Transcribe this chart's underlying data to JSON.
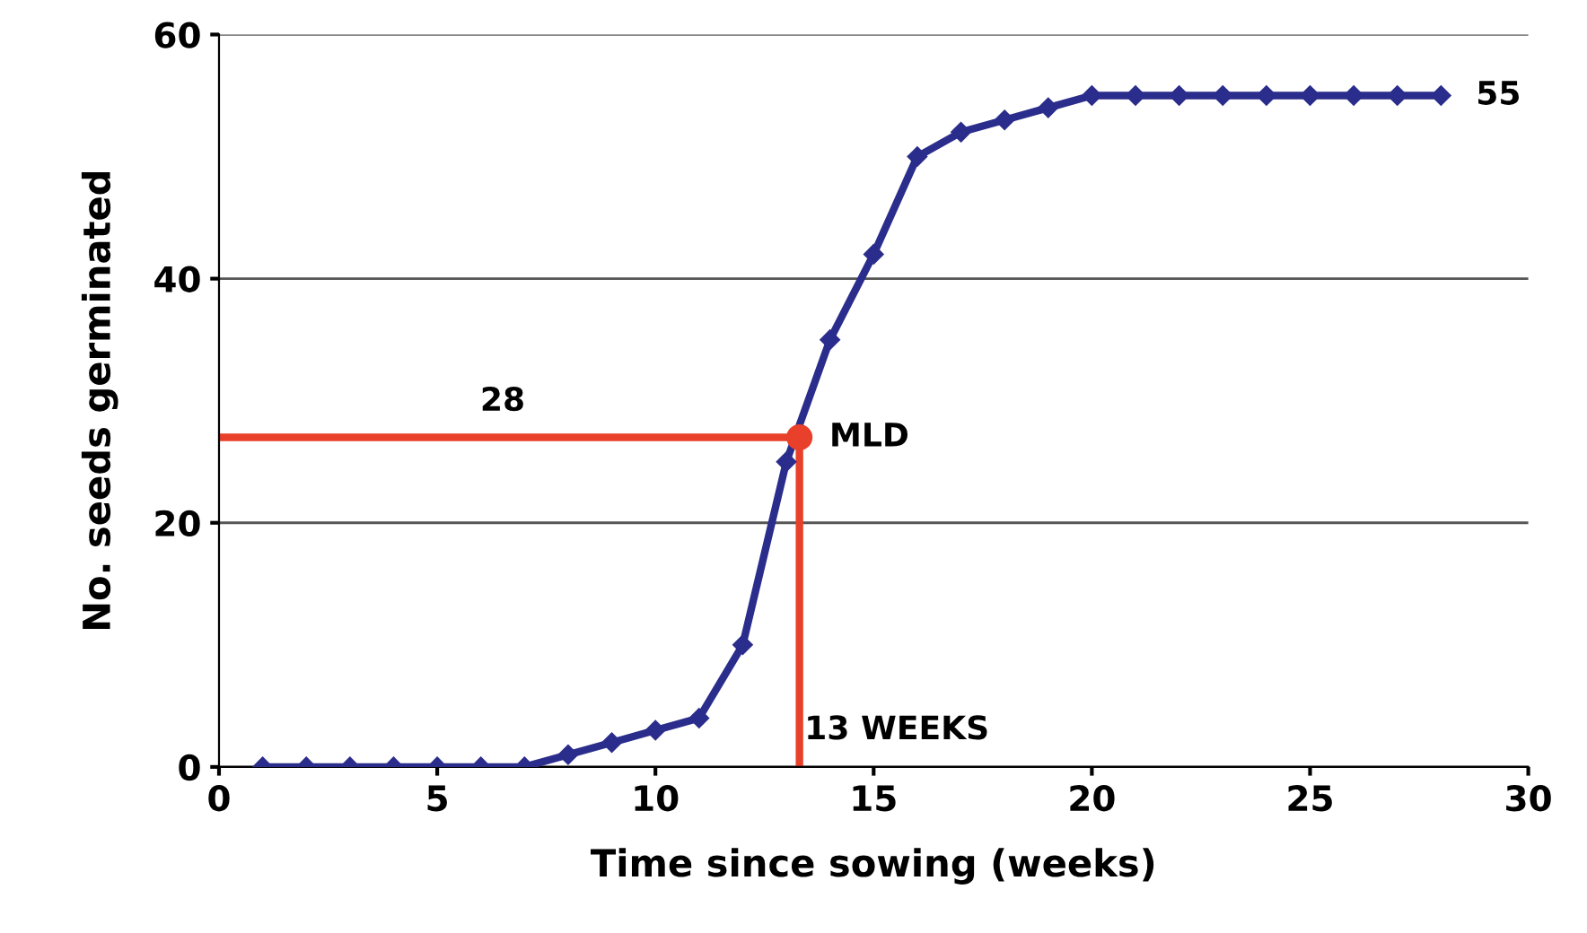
{
  "chart_data": {
    "type": "line",
    "xlabel": "Time since sowing (weeks)",
    "ylabel": "No. seeds germinated",
    "xlim": [
      0,
      30
    ],
    "xticks": [
      0,
      5,
      10,
      15,
      20,
      25,
      30
    ],
    "ylim": [
      0,
      60
    ],
    "yticks": [
      0,
      20,
      40,
      60
    ],
    "grid": "y",
    "series": [
      {
        "color": "#2b2d8c",
        "marker": "diamond",
        "x": [
          1,
          2,
          3,
          4,
          5,
          6,
          7,
          8,
          9,
          10,
          11,
          12,
          13,
          14,
          15,
          16,
          17,
          18,
          19,
          20,
          21,
          22,
          23,
          24,
          25,
          26,
          27,
          28
        ],
        "values": [
          0,
          0,
          0,
          0,
          0,
          0,
          0,
          1,
          2,
          3,
          4,
          10,
          25,
          35,
          42,
          50,
          52,
          53,
          54,
          55,
          55,
          55,
          55,
          55,
          55,
          55,
          55,
          55
        ]
      },
      {
        "color": "#e8402a",
        "marker": "none",
        "x": [
          0,
          13.3
        ],
        "values": [
          27,
          27
        ]
      },
      {
        "color": "#e8402a",
        "marker": "none",
        "x": [
          13.3,
          13.3
        ],
        "values": [
          0,
          27
        ]
      },
      {
        "type": "scatter",
        "color": "#e8402a",
        "marker": "circle",
        "x": [
          13.3
        ],
        "values": [
          27
        ]
      }
    ],
    "annotations": [
      {
        "text": "28",
        "x": 6.5,
        "y": 27
      },
      {
        "text": "MLD",
        "x": 13.3,
        "y": 27
      },
      {
        "text": "13 WEEKS",
        "x": 13.3,
        "y": 3
      },
      {
        "text": "55",
        "x": 28,
        "y": 55
      }
    ]
  }
}
